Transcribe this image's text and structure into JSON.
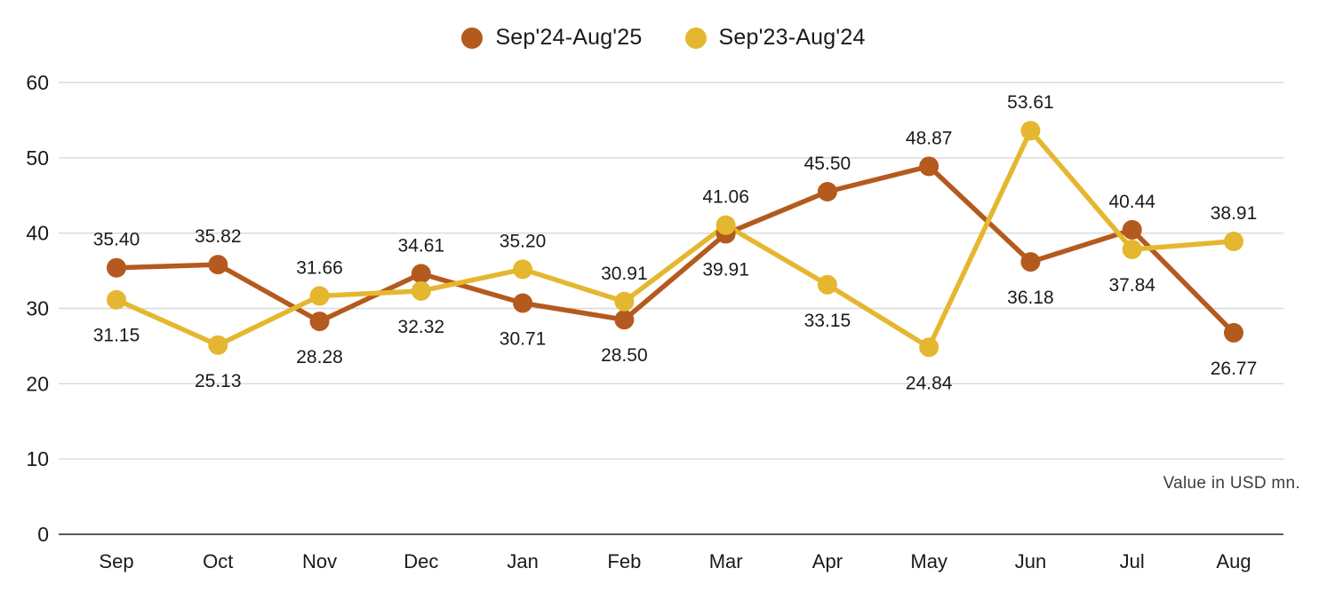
{
  "legend": {
    "items": [
      {
        "label": "Sep'24-Aug'25",
        "color": "#B45A1E"
      },
      {
        "label": "Sep'23-Aug'24",
        "color": "#E5B730"
      }
    ]
  },
  "note": "Value in USD mn.",
  "chart_data": {
    "type": "line",
    "title": "",
    "xlabel": "",
    "ylabel": "",
    "note": "Value in USD mn.",
    "categories": [
      "Sep",
      "Oct",
      "Nov",
      "Dec",
      "Jan",
      "Feb",
      "Mar",
      "Apr",
      "May",
      "Jun",
      "Jul",
      "Aug"
    ],
    "yticks": [
      0,
      10,
      20,
      30,
      40,
      50,
      60
    ],
    "ylim": [
      0,
      60
    ],
    "grid": true,
    "legend_position": "top-center",
    "series": [
      {
        "name": "Sep'24-Aug'25",
        "color": "#B45A1E",
        "values": [
          35.4,
          35.82,
          28.28,
          34.61,
          30.71,
          28.5,
          39.91,
          45.5,
          48.87,
          36.18,
          40.44,
          26.77
        ],
        "labels": [
          "35.40",
          "35.82",
          "28.28",
          "34.61",
          "30.71",
          "28.50",
          "39.91",
          "45.50",
          "48.87",
          "36.18",
          "40.44",
          "26.77"
        ],
        "label_positions": [
          "above",
          "above",
          "below",
          "above",
          "below",
          "below",
          "below",
          "above",
          "above",
          "below",
          "above",
          "below"
        ]
      },
      {
        "name": "Sep'23-Aug'24",
        "color": "#E5B730",
        "values": [
          31.15,
          25.13,
          31.66,
          32.32,
          35.2,
          30.91,
          41.06,
          33.15,
          24.84,
          53.61,
          37.84,
          38.91
        ],
        "labels": [
          "31.15",
          "25.13",
          "31.66",
          "32.32",
          "35.20",
          "30.91",
          "41.06",
          "33.15",
          "24.84",
          "53.61",
          "37.84",
          "38.91"
        ],
        "label_positions": [
          "below",
          "below",
          "above",
          "below",
          "above",
          "above",
          "above",
          "below",
          "below",
          "above",
          "below",
          "above"
        ]
      }
    ],
    "colors": {
      "gridline": "#D9D9D9",
      "axis_line": "#595959",
      "tick_text": "#1a1a1a",
      "data_label_text": "#1a1a1a"
    }
  }
}
